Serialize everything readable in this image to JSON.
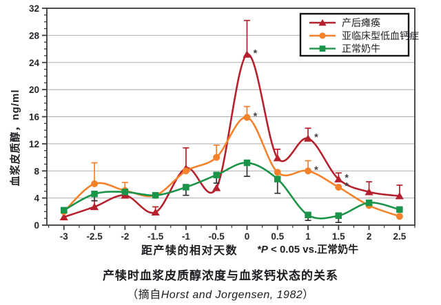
{
  "chart_data": {
    "type": "line",
    "title": "产犊时血浆皮质醇浓度与血浆钙状态的关系",
    "source_prefix": "（摘自",
    "source_citation": "Horst and Jorgensen, 1982",
    "source_suffix": "）",
    "xlabel": "距产犊的相对天数",
    "ylabel": "血浆皮质醇，ng/ml",
    "footnote_marker": "*P",
    "footnote_text": " < 0.05 vs.正常奶牛",
    "sig_symbol": "*",
    "x": [
      -3,
      -2.5,
      -2,
      -1.5,
      -1,
      -0.5,
      0,
      0.5,
      1,
      1.5,
      2,
      2.5
    ],
    "xlim": [
      -3.28,
      2.75
    ],
    "ylim": [
      0,
      32
    ],
    "y_tick_step": 4,
    "y_minor_step": 1,
    "x_minor_step": 0.25,
    "grid": "horizontal",
    "legend_position": "top-right",
    "frame_color": "#3b3b3b",
    "grid_color": "#ababab",
    "tick_label_color": "#26262b",
    "sig_color": "#43434c",
    "series": [
      {
        "id": "milk-fever",
        "name": "产后瘫痪",
        "color": "#b5202c",
        "err_color": "#b5202c",
        "marker": "triangle",
        "values": [
          1.2,
          2.7,
          4.4,
          1.9,
          8.4,
          5.5,
          25.2,
          9.9,
          12.8,
          6.8,
          4.9,
          4.3
        ],
        "err_up": [
          0,
          0.9,
          0,
          0.8,
          3.0,
          0,
          5.0,
          1.3,
          1.5,
          0.9,
          1.5,
          1.6
        ],
        "err_down": [
          0,
          0,
          0,
          0,
          0,
          0,
          0,
          0,
          0,
          0,
          0,
          0
        ],
        "sig_at": [
          0,
          1,
          1.5
        ]
      },
      {
        "id": "subclinical-hypocalcemia",
        "name": "亚临床型低血钙症",
        "color": "#f5812b",
        "err_color": "#f5812b",
        "marker": "circle",
        "values": [
          2.0,
          6.1,
          5.1,
          4.4,
          8.0,
          10.0,
          15.9,
          7.8,
          8.0,
          5.6,
          2.9,
          1.3
        ],
        "err_up": [
          0,
          3.1,
          1.2,
          0,
          0,
          1.8,
          1.6,
          0,
          1.5,
          0,
          0,
          0
        ],
        "err_down": [
          0,
          0,
          0,
          0,
          0,
          0,
          0,
          0,
          0,
          0,
          0,
          0
        ],
        "sig_at": [
          0,
          1,
          1.5
        ]
      },
      {
        "id": "normal-cows",
        "name": "正常奶牛",
        "color": "#1a9448",
        "err_color": "#333333",
        "marker": "square",
        "values": [
          2.2,
          4.6,
          4.9,
          4.4,
          5.6,
          7.4,
          9.2,
          6.8,
          1.5,
          1.4,
          3.3,
          2.3
        ],
        "err_up": [
          0,
          0,
          0,
          0,
          0,
          0,
          0,
          0,
          0,
          0,
          0,
          0
        ],
        "err_down": [
          0,
          1.0,
          0,
          0,
          1.2,
          1.2,
          2.0,
          2.1,
          0.8,
          1.0,
          0,
          0
        ],
        "sig_at": []
      }
    ]
  }
}
